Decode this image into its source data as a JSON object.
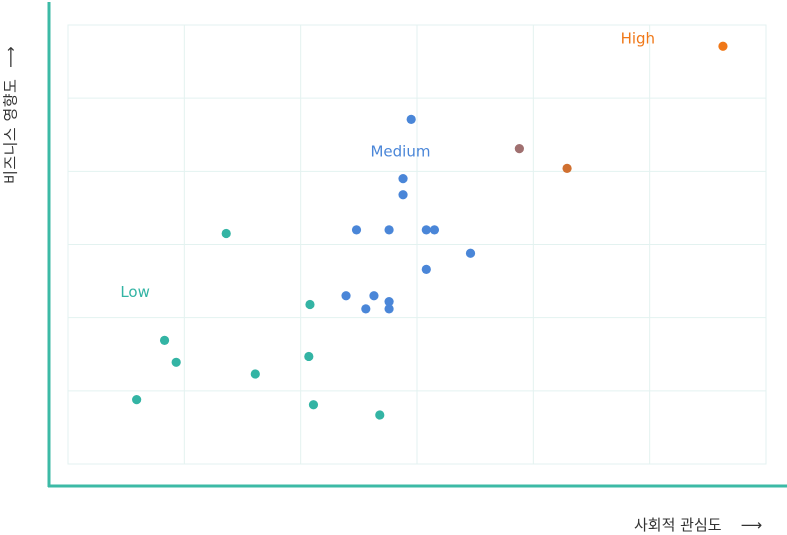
{
  "chart_data": {
    "type": "scatter",
    "xlabel": "사회적 관심도",
    "ylabel": "비즈니스 영향도",
    "xlim": [
      0,
      6
    ],
    "ylim": [
      0,
      6
    ],
    "grid": true,
    "colors": {
      "axis": "#3cbaa6",
      "grid": "#e3f2f0",
      "arrow": "#333333"
    },
    "annotations": [
      {
        "text": "High",
        "x": 4.75,
        "y": 5.75,
        "color": "#f07818"
      },
      {
        "text": "Medium",
        "x": 2.6,
        "y": 4.2,
        "color": "#4a86d8"
      },
      {
        "text": "Low",
        "x": 0.45,
        "y": 2.28,
        "color": "#33b4a4"
      }
    ],
    "series": [
      {
        "color": "#4a86d8",
        "points": [
          {
            "x": 2.95,
            "y": 4.71
          },
          {
            "x": 2.88,
            "y": 3.9
          },
          {
            "x": 2.88,
            "y": 3.68
          },
          {
            "x": 2.48,
            "y": 3.2
          },
          {
            "x": 2.76,
            "y": 3.2
          },
          {
            "x": 3.08,
            "y": 3.2
          },
          {
            "x": 3.15,
            "y": 3.2
          },
          {
            "x": 3.46,
            "y": 2.88
          },
          {
            "x": 3.08,
            "y": 2.66
          },
          {
            "x": 2.39,
            "y": 2.3
          },
          {
            "x": 2.63,
            "y": 2.3
          },
          {
            "x": 2.76,
            "y": 2.22
          },
          {
            "x": 2.56,
            "y": 2.12
          },
          {
            "x": 2.76,
            "y": 2.12
          }
        ]
      },
      {
        "color": "#33b4a4",
        "points": [
          {
            "x": 1.36,
            "y": 3.15
          },
          {
            "x": 2.08,
            "y": 2.18
          },
          {
            "x": 0.83,
            "y": 1.69
          },
          {
            "x": 0.93,
            "y": 1.39
          },
          {
            "x": 2.07,
            "y": 1.47
          },
          {
            "x": 1.61,
            "y": 1.23
          },
          {
            "x": 0.59,
            "y": 0.88
          },
          {
            "x": 2.11,
            "y": 0.81
          },
          {
            "x": 2.68,
            "y": 0.67
          }
        ]
      },
      {
        "color": "#a07070",
        "points": [
          {
            "x": 3.88,
            "y": 4.31
          }
        ]
      },
      {
        "color": "#d07030",
        "points": [
          {
            "x": 4.29,
            "y": 4.04
          }
        ]
      },
      {
        "color": "#f07818",
        "points": [
          {
            "x": 5.63,
            "y": 5.71
          }
        ]
      }
    ]
  }
}
